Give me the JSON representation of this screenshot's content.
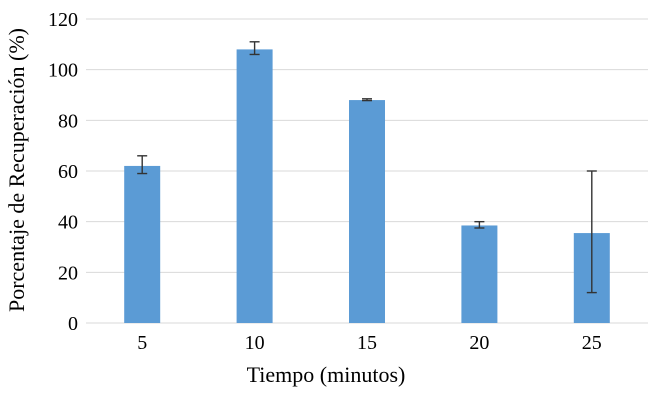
{
  "chart_data": {
    "type": "bar",
    "xlabel": "Tiempo (minutos)",
    "ylabel": "Porcentaje de Recuperación (%)",
    "categories": [
      "5",
      "10",
      "15",
      "20",
      "25"
    ],
    "values": [
      62,
      108,
      88,
      38.5,
      35.5
    ],
    "error_low": [
      59,
      106,
      87.8,
      37.5,
      12
    ],
    "error_high": [
      66,
      111,
      88.5,
      40,
      60
    ],
    "yticks": [
      "0",
      "20",
      "40",
      "60",
      "80",
      "100",
      "120"
    ],
    "ylim": [
      0,
      120
    ],
    "grid": true,
    "bar_color": "#5b9bd5",
    "legend": "none"
  }
}
